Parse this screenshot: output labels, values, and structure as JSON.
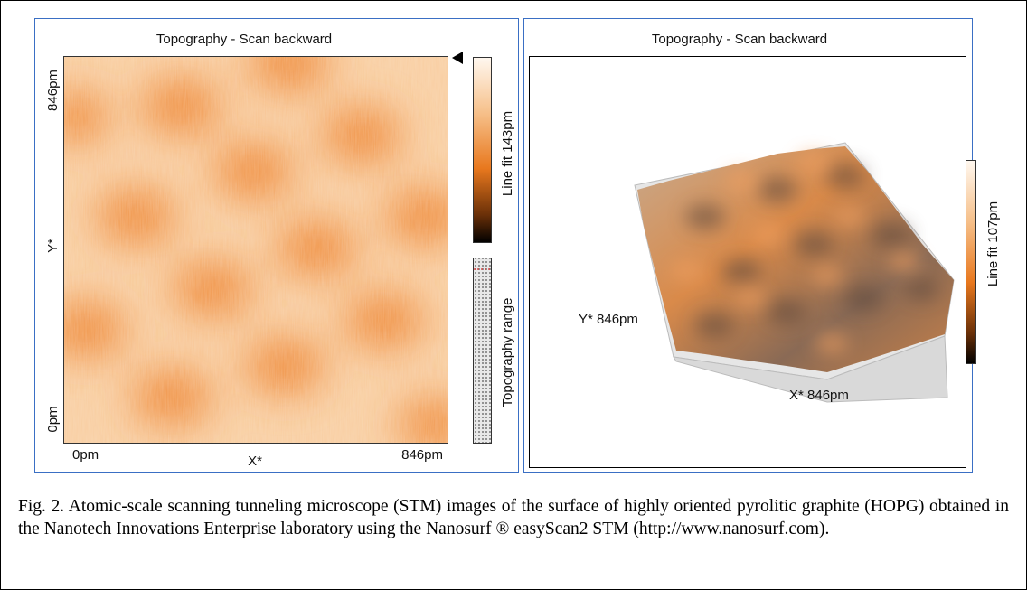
{
  "left_panel": {
    "title": "Topography - Scan backward",
    "y_axis": {
      "top": "846pm",
      "label": "Y*",
      "bottom": "0pm"
    },
    "x_axis": {
      "left": "0pm",
      "label": "X*",
      "right": "846pm"
    },
    "colorbar_label": "Line fit 143pm",
    "range_label": "Topography range"
  },
  "right_panel": {
    "title": "Topography - Scan backward",
    "y_axis_label": "Y* 846pm",
    "x_axis_label": "X* 846pm",
    "colorbar_label": "Line fit 107pm"
  },
  "caption": "Fig. 2. Atomic-scale scanning tunneling microscope (STM) images of the surface of highly oriented pyrolitic graphite (HOPG) obtained in the Nanotech Innovations Enterprise laboratory using the Nanosurf ® easyScan2 STM (http://www.nanosurf.com)."
}
